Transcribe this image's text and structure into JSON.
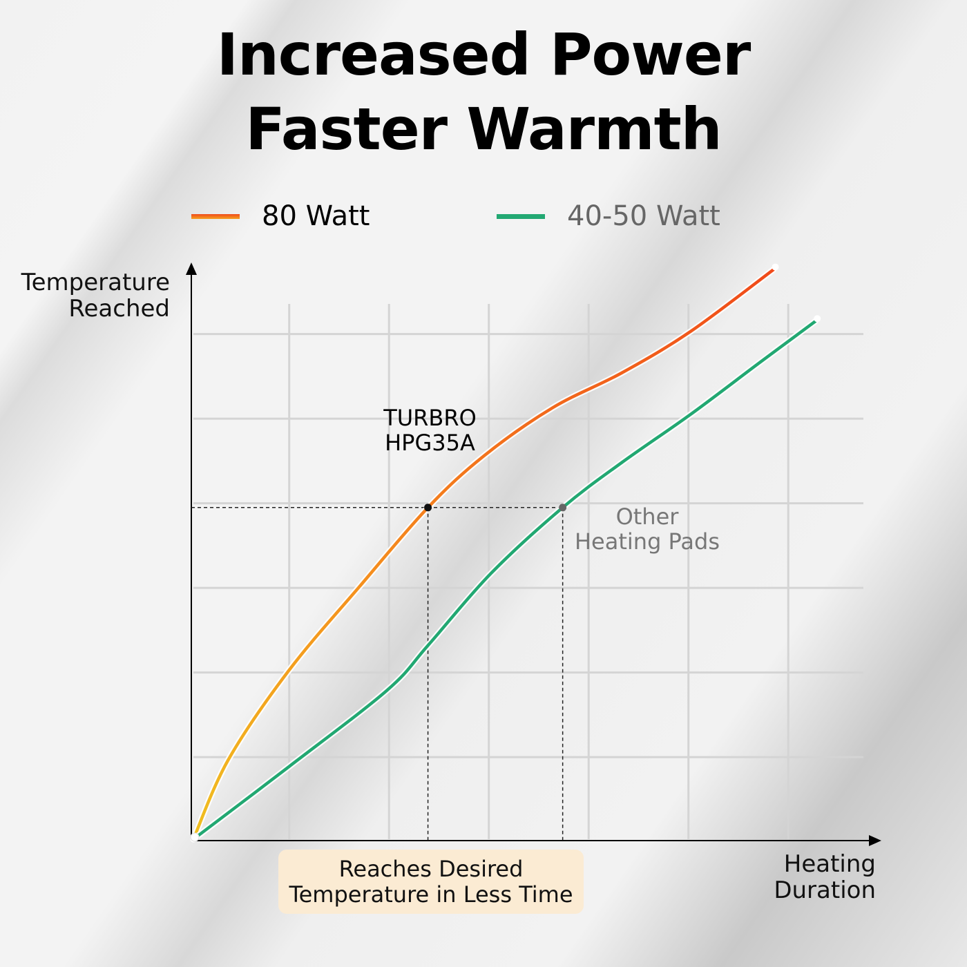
{
  "header": {
    "title_line1": "Increased Power",
    "title_line2": "Faster Warmth"
  },
  "legend": [
    {
      "label": "80 Watt",
      "color": "#f04a1a",
      "color_start": "#f0c020"
    },
    {
      "label": "40-50 Watt",
      "color": "#22a872"
    }
  ],
  "chart_data": {
    "type": "line",
    "ylabel": "Temperature Reached",
    "xlabel": "Heating Duration",
    "grid": true,
    "legend_position": "top",
    "series": [
      {
        "name": "80 Watt",
        "color": "#f04a1a",
        "x": [
          0,
          0.35,
          0.96,
          1.66,
          2.35,
          2.91,
          3.6,
          4.29,
          4.98,
          5.81
        ],
        "y": [
          0,
          0.94,
          2.0,
          2.98,
          3.92,
          4.53,
          5.1,
          5.51,
          6.0,
          6.73
        ]
      },
      {
        "name": "40-50 Watt",
        "color": "#22a872",
        "x": [
          0,
          0.96,
          1.94,
          2.35,
          2.98,
          3.7,
          4.29,
          4.98,
          5.67,
          6.23
        ],
        "y": [
          0,
          0.86,
          1.76,
          2.29,
          3.14,
          3.92,
          4.45,
          5.02,
          5.63,
          6.12
        ]
      }
    ],
    "reference_y": 3.92,
    "reference_points": [
      {
        "x": 2.35,
        "y": 3.92
      },
      {
        "x": 3.7,
        "y": 3.92
      }
    ],
    "annotations": {
      "product": [
        "TURBRO",
        "HPG35A"
      ],
      "other": [
        "Other",
        "Heating Pads"
      ],
      "note": [
        "Reaches Desired",
        "Temperature in Less Time"
      ]
    }
  }
}
